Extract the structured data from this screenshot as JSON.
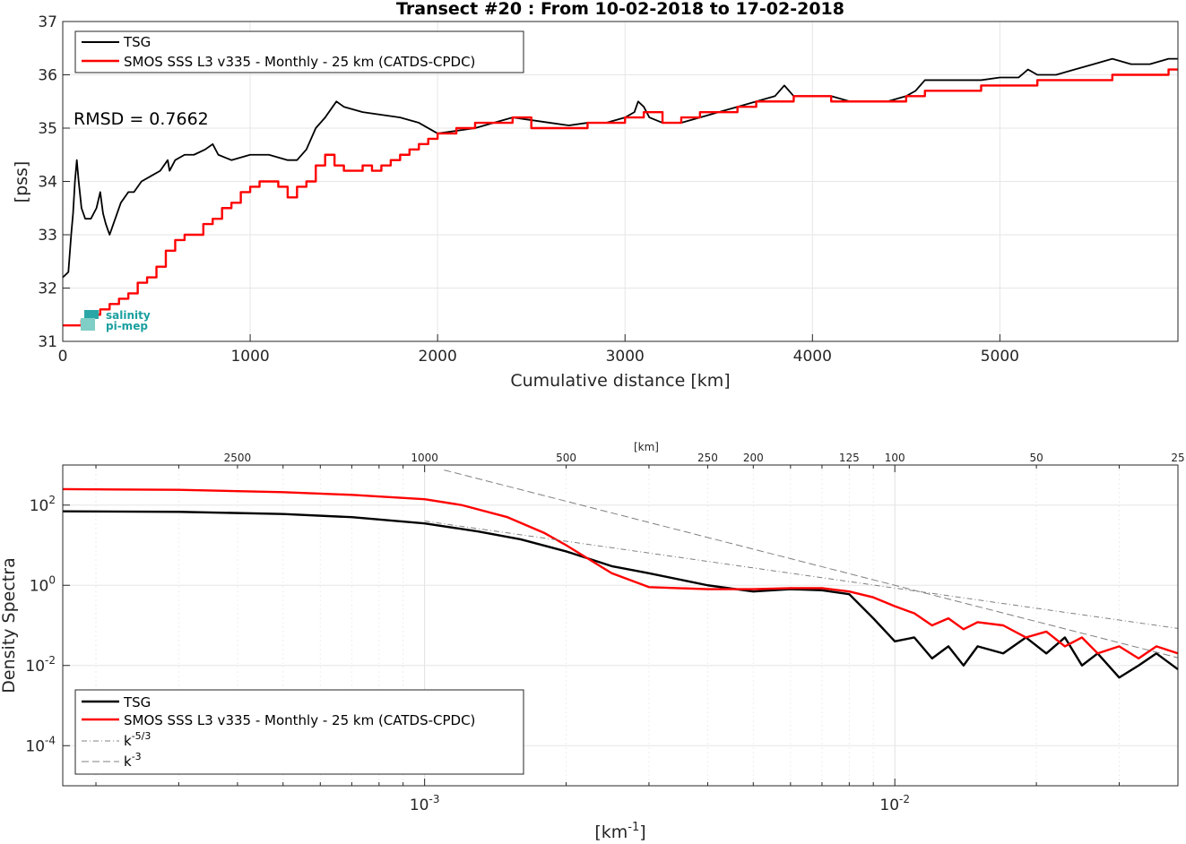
{
  "chart_data": [
    {
      "type": "line",
      "title": "Transect #20 : From 10-02-2018 to 17-02-2018",
      "xlabel": "Cumulative distance [km]",
      "ylabel": "[pss]",
      "xlim": [
        0,
        5950
      ],
      "ylim": [
        31,
        37
      ],
      "xticks": [
        0,
        1000,
        2000,
        3000,
        4000,
        5000
      ],
      "yticks": [
        31,
        32,
        33,
        34,
        35,
        36,
        37
      ],
      "grid": true,
      "legend_position": "top-left",
      "annotation": "RMSD = 0.7662",
      "series": [
        {
          "name": "TSG",
          "color": "#000000",
          "x": [
            0,
            30,
            45,
            55,
            65,
            75,
            85,
            100,
            120,
            150,
            180,
            200,
            215,
            230,
            250,
            270,
            290,
            310,
            350,
            380,
            420,
            470,
            520,
            560,
            570,
            600,
            650,
            700,
            760,
            800,
            830,
            900,
            1000,
            1100,
            1200,
            1250,
            1300,
            1350,
            1400,
            1440,
            1460,
            1500,
            1600,
            1700,
            1800,
            1900,
            2000,
            2100,
            2200,
            2300,
            2400,
            2500,
            2600,
            2700,
            2800,
            2900,
            3000,
            3050,
            3070,
            3100,
            3130,
            3200,
            3300,
            3400,
            3500,
            3600,
            3700,
            3800,
            3850,
            3900,
            4000,
            4100,
            4200,
            4300,
            4400,
            4500,
            4550,
            4600,
            4700,
            4800,
            4900,
            5000,
            5100,
            5150,
            5200,
            5300,
            5400,
            5500,
            5600,
            5700,
            5800,
            5900,
            5950
          ],
          "y": [
            32.2,
            32.3,
            33.0,
            33.4,
            34.0,
            34.4,
            34.0,
            33.5,
            33.3,
            33.3,
            33.5,
            33.8,
            33.4,
            33.2,
            33.0,
            33.2,
            33.4,
            33.6,
            33.8,
            33.8,
            34.0,
            34.1,
            34.2,
            34.4,
            34.2,
            34.4,
            34.5,
            34.5,
            34.6,
            34.7,
            34.5,
            34.4,
            34.5,
            34.5,
            34.4,
            34.4,
            34.6,
            35.0,
            35.2,
            35.4,
            35.5,
            35.4,
            35.3,
            35.25,
            35.2,
            35.1,
            34.9,
            34.95,
            35.0,
            35.1,
            35.2,
            35.15,
            35.1,
            35.05,
            35.1,
            35.1,
            35.2,
            35.3,
            35.5,
            35.4,
            35.2,
            35.1,
            35.1,
            35.2,
            35.3,
            35.4,
            35.5,
            35.6,
            35.8,
            35.6,
            35.6,
            35.6,
            35.5,
            35.5,
            35.5,
            35.6,
            35.7,
            35.9,
            35.9,
            35.9,
            35.9,
            35.95,
            35.95,
            36.1,
            36.0,
            36.0,
            36.1,
            36.2,
            36.3,
            36.2,
            36.2,
            36.3,
            36.3
          ]
        },
        {
          "name": "SMOS SSS L3 v335 - Monthly - 25 km (CATDS-CPDC)",
          "color": "#ff0000",
          "x": [
            0,
            50,
            100,
            150,
            200,
            250,
            300,
            350,
            400,
            450,
            500,
            550,
            600,
            650,
            700,
            750,
            800,
            850,
            900,
            950,
            1000,
            1050,
            1100,
            1150,
            1200,
            1250,
            1300,
            1350,
            1400,
            1450,
            1500,
            1550,
            1600,
            1650,
            1700,
            1750,
            1800,
            1850,
            1900,
            1950,
            2000,
            2100,
            2200,
            2300,
            2400,
            2500,
            2600,
            2700,
            2800,
            2900,
            3000,
            3100,
            3200,
            3300,
            3400,
            3500,
            3600,
            3700,
            3800,
            3900,
            4000,
            4100,
            4200,
            4300,
            4400,
            4500,
            4600,
            4700,
            4800,
            4900,
            5000,
            5100,
            5200,
            5300,
            5400,
            5500,
            5600,
            5700,
            5800,
            5900,
            5950
          ],
          "y": [
            31.3,
            31.3,
            31.4,
            31.5,
            31.6,
            31.7,
            31.8,
            31.9,
            32.1,
            32.2,
            32.4,
            32.7,
            32.9,
            33.0,
            33.0,
            33.2,
            33.3,
            33.5,
            33.6,
            33.8,
            33.9,
            34.0,
            34.0,
            33.9,
            33.7,
            33.9,
            34.0,
            34.3,
            34.5,
            34.3,
            34.2,
            34.2,
            34.3,
            34.2,
            34.3,
            34.4,
            34.5,
            34.6,
            34.7,
            34.8,
            34.9,
            35.0,
            35.1,
            35.1,
            35.2,
            35.0,
            35.0,
            35.0,
            35.1,
            35.1,
            35.2,
            35.3,
            35.1,
            35.2,
            35.3,
            35.3,
            35.4,
            35.5,
            35.5,
            35.6,
            35.6,
            35.5,
            35.5,
            35.5,
            35.5,
            35.6,
            35.7,
            35.7,
            35.7,
            35.8,
            35.8,
            35.8,
            35.9,
            35.9,
            35.9,
            35.9,
            36.0,
            36.0,
            36.0,
            36.1,
            36.1
          ]
        }
      ]
    },
    {
      "type": "line",
      "xlabel": "[km-1]",
      "ylabel": "Density Spectra",
      "x_scale": "log",
      "y_scale": "log",
      "xlim": [
        0.00017,
        0.04
      ],
      "ylim": [
        1e-05,
        1000
      ],
      "xtick_labels": [
        "10-3",
        "10-2"
      ],
      "ytick_labels": [
        "10-4",
        "10-2",
        "100",
        "102"
      ],
      "top_axis_label": "[km]",
      "top_axis_ticks": [
        2500,
        1000,
        500,
        250,
        200,
        125,
        100,
        50,
        25
      ],
      "grid": true,
      "legend_position": "bottom-left",
      "series": [
        {
          "name": "TSG",
          "color": "#000000",
          "x": [
            0.00017,
            0.0003,
            0.0005,
            0.0007,
            0.001,
            0.0013,
            0.0016,
            0.002,
            0.0025,
            0.003,
            0.004,
            0.005,
            0.006,
            0.007,
            0.008,
            0.009,
            0.01,
            0.011,
            0.012,
            0.013,
            0.014,
            0.015,
            0.017,
            0.019,
            0.021,
            0.023,
            0.025,
            0.027,
            0.03,
            0.033,
            0.036,
            0.04
          ],
          "y": [
            70,
            68,
            60,
            50,
            35,
            22,
            14,
            7,
            3,
            2,
            1,
            0.7,
            0.8,
            0.75,
            0.6,
            0.15,
            0.04,
            0.05,
            0.015,
            0.03,
            0.01,
            0.03,
            0.02,
            0.05,
            0.02,
            0.05,
            0.01,
            0.02,
            0.005,
            0.01,
            0.02,
            0.008
          ]
        },
        {
          "name": "SMOS SSS L3 v335 - Monthly - 25 km (CATDS-CPDC)",
          "color": "#ff0000",
          "x": [
            0.00017,
            0.0003,
            0.0005,
            0.0007,
            0.001,
            0.0012,
            0.0015,
            0.0018,
            0.002,
            0.0025,
            0.003,
            0.004,
            0.005,
            0.006,
            0.007,
            0.008,
            0.009,
            0.01,
            0.011,
            0.012,
            0.013,
            0.014,
            0.015,
            0.017,
            0.019,
            0.021,
            0.023,
            0.025,
            0.027,
            0.03,
            0.033,
            0.036,
            0.04
          ],
          "y": [
            250,
            240,
            210,
            180,
            140,
            100,
            50,
            20,
            10,
            2,
            0.9,
            0.8,
            0.8,
            0.85,
            0.85,
            0.7,
            0.5,
            0.3,
            0.2,
            0.1,
            0.15,
            0.08,
            0.12,
            0.1,
            0.05,
            0.07,
            0.03,
            0.05,
            0.02,
            0.03,
            0.015,
            0.03,
            0.02
          ]
        },
        {
          "name": "k-5/3",
          "color": "#808080",
          "x": [
            0.001,
            0.04
          ],
          "y": [
            40,
            0.084
          ]
        },
        {
          "name": "k-3",
          "color": "#808080",
          "x": [
            0.0011,
            0.04
          ],
          "y": [
            750,
            0.0156
          ]
        }
      ]
    }
  ],
  "logo": {
    "line1": "salinity",
    "line2": "pi-mep",
    "color": "#1a9f9f"
  }
}
